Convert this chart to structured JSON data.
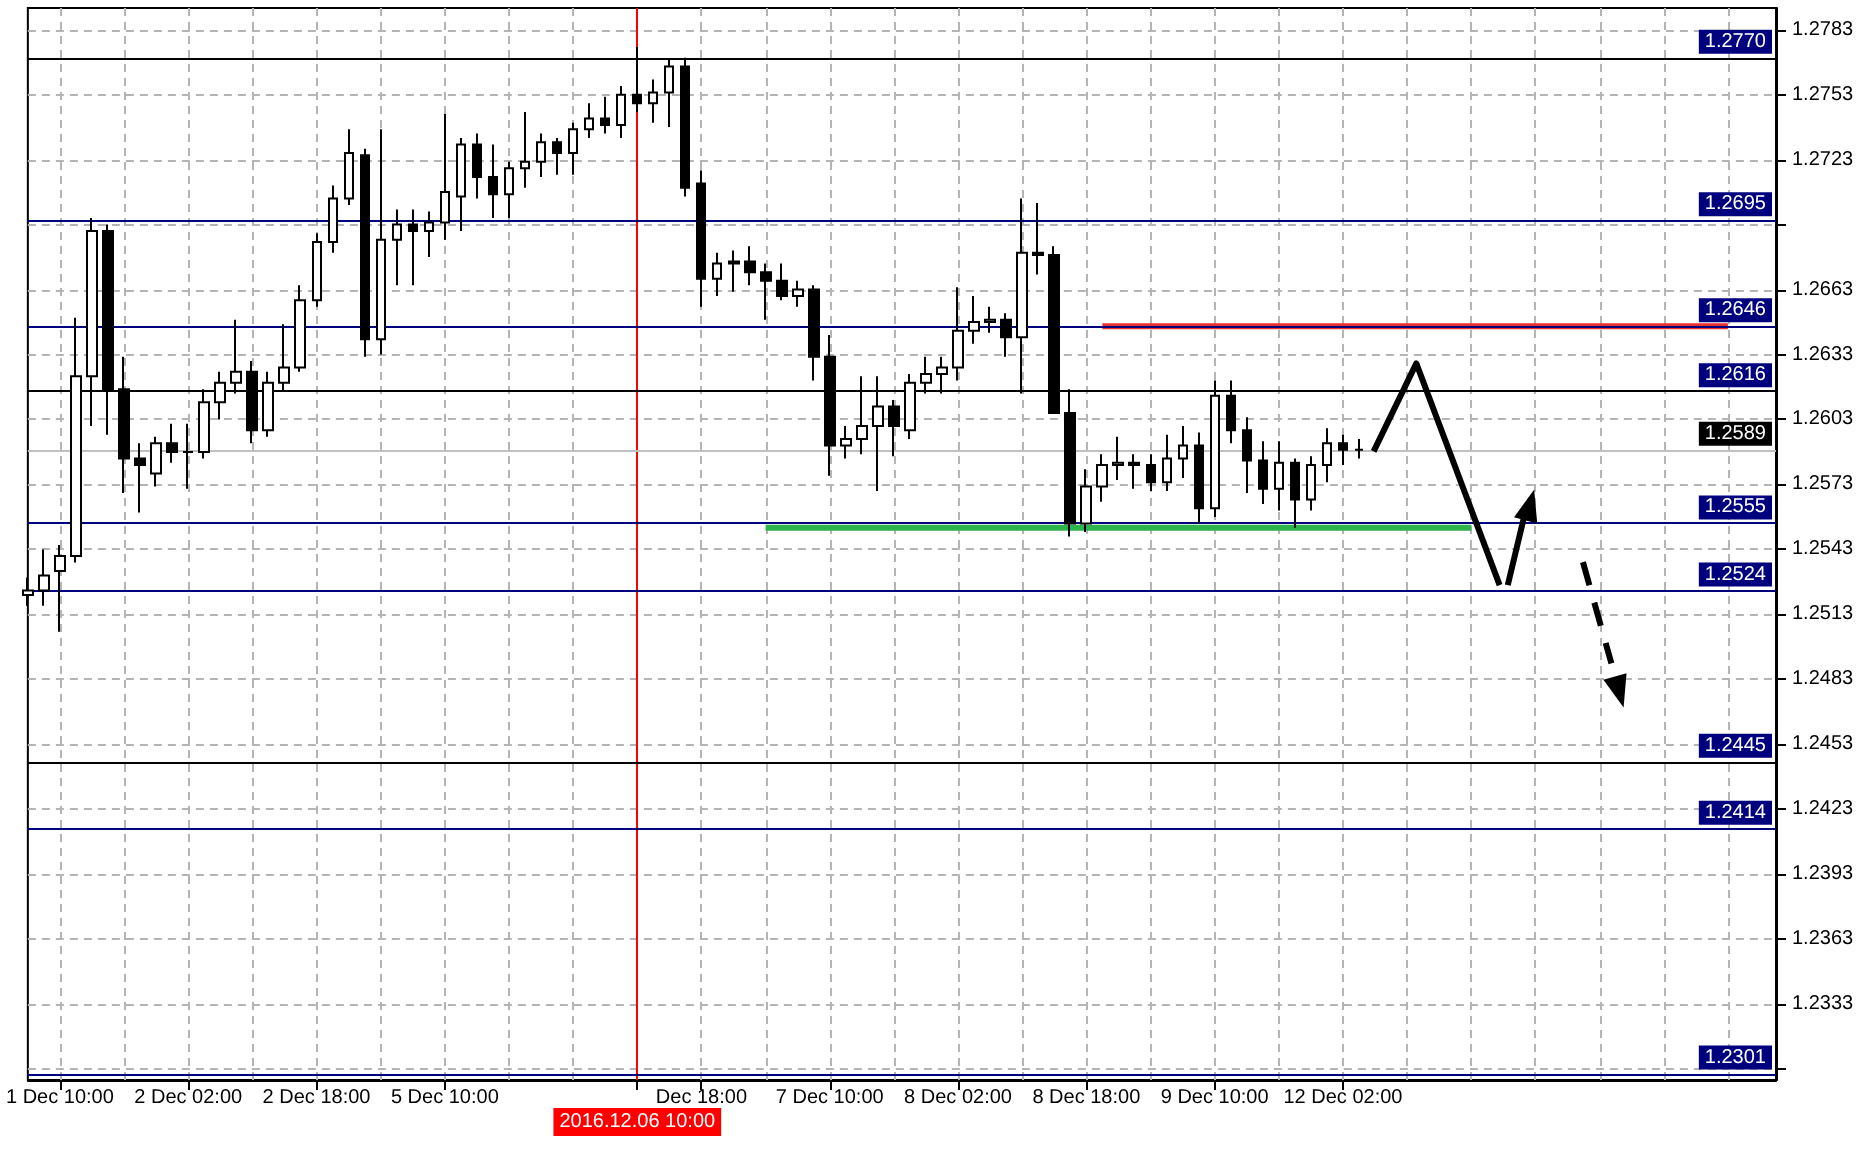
{
  "chart_data": {
    "type": "candlestick",
    "categories": [
      null,
      null,
      "1 Dec 10:00",
      null,
      null,
      null,
      null,
      null,
      null,
      null,
      "2 Dec 02:00",
      null,
      null,
      null,
      null,
      null,
      null,
      null,
      "2 Dec 18:00",
      null,
      null,
      null,
      null,
      null,
      null,
      null,
      "5 Dec 10:00",
      null,
      null,
      null,
      null,
      null,
      null,
      null,
      null,
      null,
      null,
      null,
      "2016.12.06 10:00",
      null,
      null,
      null,
      "Dec 18:00",
      null,
      null,
      null,
      null,
      null,
      null,
      null,
      "7 Dec 10:00",
      null,
      null,
      null,
      null,
      null,
      null,
      null,
      "8 Dec 02:00",
      null,
      null,
      null,
      null,
      null,
      null,
      null,
      "8 Dec 18:00",
      null,
      null,
      null,
      null,
      null,
      null,
      null,
      "9 Dec 10:00",
      null,
      null,
      null,
      null,
      null,
      null,
      null,
      "12 Dec 02:00",
      null,
      null,
      null,
      null,
      null,
      null,
      null,
      null,
      null,
      null,
      null,
      null,
      null,
      null,
      null,
      null,
      null,
      null,
      null,
      null,
      null,
      null,
      null,
      null,
      null,
      null,
      null
    ],
    "ohlc": [
      [
        1.2522,
        1.253,
        1.2517,
        1.2524
      ],
      [
        1.2524,
        1.2543,
        1.2517,
        1.2531
      ],
      [
        1.2533,
        1.2545,
        1.2505,
        1.254
      ],
      [
        1.254,
        1.265,
        1.2537,
        1.2623
      ],
      [
        1.2623,
        1.2696,
        1.26,
        1.269
      ],
      [
        1.269,
        1.2693,
        1.2596,
        1.2617
      ],
      [
        1.2617,
        1.2632,
        1.2569,
        1.2585
      ],
      [
        1.2585,
        1.2592,
        1.256,
        1.2582
      ],
      [
        1.2578,
        1.2595,
        1.2572,
        1.2592
      ],
      [
        1.2592,
        1.2601,
        1.2583,
        1.2588
      ],
      [
        1.2588,
        1.2601,
        1.2571,
        1.2588
      ],
      [
        1.2588,
        1.2617,
        1.2585,
        1.2611
      ],
      [
        1.2611,
        1.2625,
        1.2603,
        1.262
      ],
      [
        1.262,
        1.2649,
        1.2615,
        1.2625
      ],
      [
        1.2625,
        1.263,
        1.2592,
        1.2598
      ],
      [
        1.2598,
        1.2625,
        1.2595,
        1.262
      ],
      [
        1.262,
        1.2647,
        1.2616,
        1.2627
      ],
      [
        1.2627,
        1.2665,
        1.2625,
        1.2658
      ],
      [
        1.2658,
        1.2689,
        1.2655,
        1.2685
      ],
      [
        1.2685,
        1.2711,
        1.268,
        1.2705
      ],
      [
        1.2705,
        1.2737,
        1.2702,
        1.2726
      ],
      [
        1.2725,
        1.2728,
        1.2632,
        1.264
      ],
      [
        1.264,
        1.2737,
        1.2633,
        1.2686
      ],
      [
        1.2686,
        1.27,
        1.2665,
        1.2693
      ],
      [
        1.2693,
        1.27,
        1.2665,
        1.269
      ],
      [
        1.269,
        1.2699,
        1.2678,
        1.2694
      ],
      [
        1.2694,
        1.2744,
        1.2686,
        1.2708
      ],
      [
        1.2706,
        1.2733,
        1.269,
        1.273
      ],
      [
        1.273,
        1.2735,
        1.2705,
        1.2715
      ],
      [
        1.2715,
        1.273,
        1.2696,
        1.2707
      ],
      [
        1.2707,
        1.2722,
        1.2696,
        1.2719
      ],
      [
        1.2719,
        1.2745,
        1.271,
        1.2722
      ],
      [
        1.2722,
        1.2735,
        1.2715,
        1.2731
      ],
      [
        1.2731,
        1.2733,
        1.2716,
        1.2726
      ],
      [
        1.2726,
        1.274,
        1.2716,
        1.2737
      ],
      [
        1.2737,
        1.2749,
        1.2733,
        1.2742
      ],
      [
        1.2742,
        1.2752,
        1.2735,
        1.2739
      ],
      [
        1.2739,
        1.2757,
        1.2733,
        1.2753
      ],
      [
        1.2753,
        1.2775,
        1.2745,
        1.2749
      ],
      [
        1.2749,
        1.276,
        1.274,
        1.2754
      ],
      [
        1.2754,
        1.2769,
        1.2738,
        1.2766
      ],
      [
        1.2766,
        1.277,
        1.2706,
        1.271
      ],
      [
        1.2712,
        1.2718,
        1.2655,
        1.2668
      ],
      [
        1.2668,
        1.268,
        1.266,
        1.2675
      ],
      [
        1.2675,
        1.2681,
        1.2662,
        1.2676
      ],
      [
        1.2676,
        1.2683,
        1.2665,
        1.2671
      ],
      [
        1.2671,
        1.2675,
        1.2649,
        1.2667
      ],
      [
        1.2667,
        1.2675,
        1.2658,
        1.266
      ],
      [
        1.266,
        1.2667,
        1.2655,
        1.2663
      ],
      [
        1.2663,
        1.2665,
        1.2621,
        1.2632
      ],
      [
        1.2632,
        1.2642,
        1.2577,
        1.2591
      ],
      [
        1.2591,
        1.26,
        1.2585,
        1.2594
      ],
      [
        1.2594,
        1.2623,
        1.2587,
        1.26
      ],
      [
        1.26,
        1.2623,
        1.257,
        1.2609
      ],
      [
        1.2609,
        1.2612,
        1.2586,
        1.26
      ],
      [
        1.2598,
        1.2624,
        1.2594,
        1.262
      ],
      [
        1.262,
        1.2632,
        1.2615,
        1.2624
      ],
      [
        1.2624,
        1.2632,
        1.2615,
        1.2627
      ],
      [
        1.2627,
        1.2664,
        1.2621,
        1.2644
      ],
      [
        1.2644,
        1.266,
        1.2638,
        1.2648
      ],
      [
        1.2648,
        1.2655,
        1.2643,
        1.2649
      ],
      [
        1.2649,
        1.2652,
        1.2632,
        1.2641
      ],
      [
        1.2641,
        1.2705,
        1.2615,
        1.268
      ],
      [
        1.268,
        1.2703,
        1.267,
        1.2679
      ],
      [
        1.2679,
        1.2683,
        1.2606,
        1.2606
      ],
      [
        1.2606,
        1.2617,
        1.2549,
        1.2555
      ],
      [
        1.2555,
        1.258,
        1.2551,
        1.2572
      ],
      [
        1.2572,
        1.2587,
        1.2565,
        1.2582
      ],
      [
        1.2582,
        1.2595,
        1.2575,
        1.2583
      ],
      [
        1.2583,
        1.2587,
        1.2571,
        1.2582
      ],
      [
        1.2582,
        1.2587,
        1.257,
        1.2574
      ],
      [
        1.2574,
        1.2596,
        1.257,
        1.2585
      ],
      [
        1.2585,
        1.26,
        1.2576,
        1.2591
      ],
      [
        1.2591,
        1.2597,
        1.2555,
        1.2562
      ],
      [
        1.2562,
        1.2621,
        1.2558,
        1.2614
      ],
      [
        1.2614,
        1.2621,
        1.2592,
        1.2598
      ],
      [
        1.2598,
        1.2604,
        1.2569,
        1.2584
      ],
      [
        1.2584,
        1.2593,
        1.2564,
        1.2571
      ],
      [
        1.2571,
        1.2593,
        1.2561,
        1.2583
      ],
      [
        1.2583,
        1.2585,
        1.2553,
        1.2566
      ],
      [
        1.2566,
        1.2586,
        1.2561,
        1.2582
      ],
      [
        1.2582,
        1.2599,
        1.2574,
        1.2592
      ],
      [
        1.2592,
        1.2596,
        1.2582,
        1.2589
      ],
      [
        1.2589,
        1.2594,
        1.2585,
        1.2589
      ],
      null,
      null,
      null,
      null,
      null,
      null,
      null,
      null,
      null,
      null,
      null,
      null,
      null,
      null,
      null,
      null,
      null,
      null,
      null,
      null,
      null,
      null,
      null,
      null,
      null,
      null
    ],
    "series": [
      {
        "type": "line",
        "color": "#e8312f",
        "values": [
          null,
          null,
          null,
          null,
          null,
          null,
          null,
          null,
          null,
          null,
          null,
          null,
          null,
          null,
          null,
          null,
          null,
          null,
          null,
          null,
          null,
          null,
          null,
          null,
          null,
          null,
          null,
          null,
          null,
          null,
          null,
          null,
          null,
          null,
          null,
          null,
          null,
          null,
          null,
          null,
          null,
          null,
          null,
          null,
          null,
          null,
          null,
          null,
          null,
          null,
          null,
          null,
          null,
          null,
          null,
          null,
          null,
          null,
          null,
          null,
          null,
          null,
          null,
          null,
          null,
          null,
          null,
          1.2646,
          null,
          null,
          null,
          null,
          null,
          null,
          null,
          null,
          null,
          null,
          null,
          null,
          null,
          null,
          null,
          null,
          null,
          null,
          null,
          null,
          null,
          null,
          null,
          null,
          null,
          null,
          null,
          null,
          null,
          null,
          null,
          null,
          null,
          null,
          null,
          null,
          null,
          null,
          1.2646,
          null,
          null,
          null
        ]
      },
      {
        "type": "line",
        "color": "#2db44a",
        "values": [
          null,
          null,
          null,
          null,
          null,
          null,
          null,
          null,
          null,
          null,
          null,
          null,
          null,
          null,
          null,
          null,
          null,
          null,
          null,
          null,
          null,
          null,
          null,
          null,
          null,
          null,
          null,
          null,
          null,
          null,
          null,
          null,
          null,
          null,
          null,
          null,
          null,
          null,
          null,
          null,
          null,
          null,
          null,
          null,
          null,
          null,
          1.2553,
          null,
          null,
          null,
          null,
          null,
          null,
          null,
          null,
          null,
          null,
          null,
          null,
          null,
          null,
          null,
          null,
          null,
          null,
          null,
          null,
          null,
          null,
          null,
          null,
          null,
          null,
          null,
          null,
          null,
          null,
          null,
          null,
          null,
          null,
          null,
          null,
          null,
          null,
          null,
          null,
          null,
          null,
          null,
          1.2553,
          null,
          null,
          null,
          null,
          null,
          null,
          null,
          null,
          null,
          null,
          null,
          null,
          null,
          null,
          null,
          null,
          null,
          null,
          null
        ]
      }
    ],
    "ylim": [
      1.2298,
      1.2793
    ],
    "yticks": [
      1.2783,
      1.2753,
      1.2723,
      {
        "value": 1.2693,
        "label": null
      },
      1.2663,
      1.2633,
      1.2603,
      1.2573,
      1.2543,
      1.2513,
      1.2483,
      1.2453,
      1.2423,
      1.2393,
      1.2363,
      1.2333,
      {
        "value": 1.2303,
        "label": null
      }
    ],
    "grid": true,
    "ref_lines": [
      {
        "axis": "x",
        "value": "2016.12.06 10:00",
        "color": "#ff0000"
      },
      {
        "axis": "y",
        "value": 1.277,
        "label": "1.2770",
        "color": "#000000"
      },
      {
        "axis": "y",
        "value": 1.2695,
        "label": "1.2695",
        "color": "#00007f"
      },
      {
        "axis": "y",
        "value": 1.2646,
        "label": "1.2646",
        "color": "#00007f"
      },
      {
        "axis": "y",
        "value": 1.2616,
        "label": "1.2616",
        "color": "#000000"
      },
      {
        "axis": "y",
        "value": 1.2589,
        "label": "1.2589",
        "color": "#c0c0c0"
      },
      {
        "axis": "y",
        "value": 1.2555,
        "label": "1.2555",
        "color": "#00007f"
      },
      {
        "axis": "y",
        "value": 1.2524,
        "label": "1.2524",
        "color": "#00007f"
      },
      {
        "axis": "y",
        "value": 1.2445,
        "label": "1.2445",
        "color": "#000000"
      },
      {
        "axis": "y",
        "value": 1.2414,
        "label": "1.2414",
        "color": "#00007f"
      },
      {
        "axis": "y",
        "value": 1.2301,
        "label": "1.2301",
        "color": "#00007f"
      }
    ]
  }
}
